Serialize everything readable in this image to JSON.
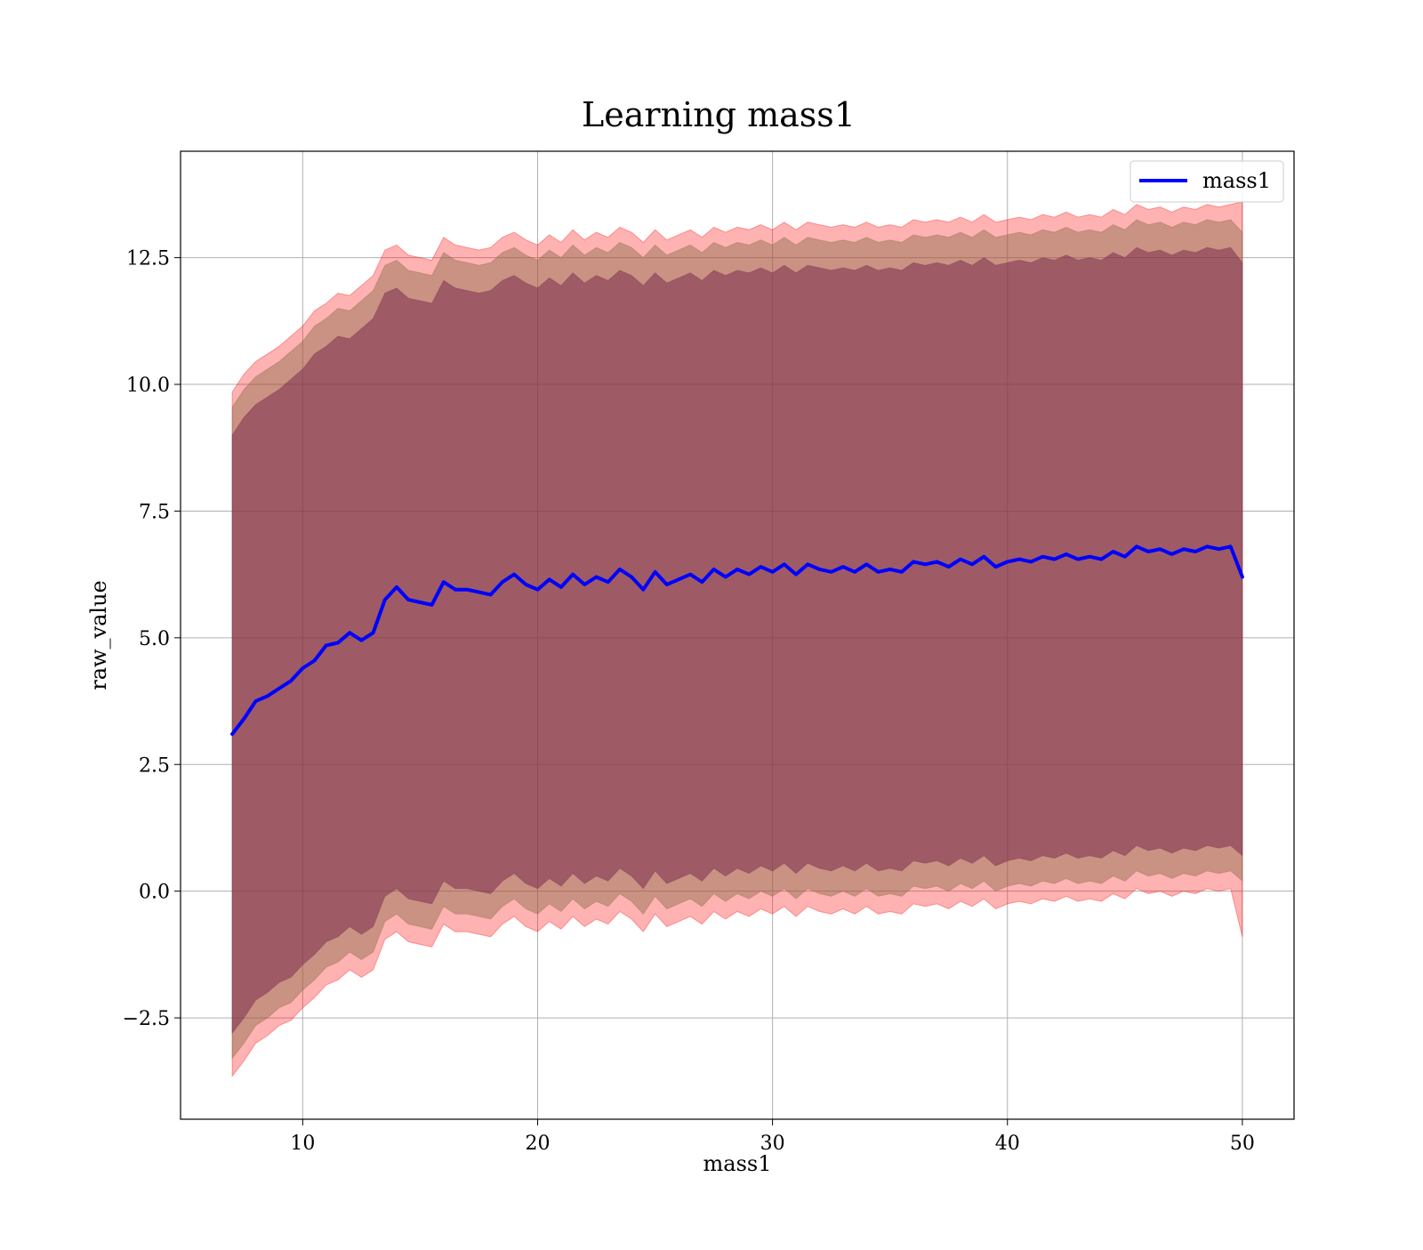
{
  "colors": {
    "mean_line": "#0000ff",
    "band_outer": "#ff0000",
    "band_middle": "#8a6a4a",
    "band_inner": "#7a2e4e",
    "grid": "#b0b0b0"
  },
  "chart_data": {
    "type": "line",
    "title": "Learning mass1",
    "xlabel": "mass1",
    "ylabel": "raw_value",
    "xlim": [
      4.8,
      52.2
    ],
    "ylim": [
      -4.5,
      14.6
    ],
    "xticks": [
      10,
      20,
      30,
      40,
      50
    ],
    "xtick_labels": [
      "10",
      "20",
      "30",
      "40",
      "50"
    ],
    "yticks": [
      -2.5,
      0.0,
      2.5,
      5.0,
      7.5,
      10.0,
      12.5
    ],
    "ytick_labels": [
      "−2.5",
      "0.0",
      "2.5",
      "5.0",
      "7.5",
      "10.0",
      "12.5"
    ],
    "grid": true,
    "legend_position": "top-right",
    "series": [
      {
        "name": "mass1",
        "x": [
          7.0,
          7.5,
          8.0,
          8.5,
          9.0,
          9.5,
          10.0,
          10.5,
          11.0,
          11.5,
          12.0,
          12.5,
          13.0,
          13.5,
          14.0,
          14.5,
          15.0,
          15.5,
          16.0,
          16.5,
          17.0,
          17.5,
          18.0,
          18.5,
          19.0,
          19.5,
          20.0,
          20.5,
          21.0,
          21.5,
          22.0,
          22.5,
          23.0,
          23.5,
          24.0,
          24.5,
          25.0,
          25.5,
          26.0,
          26.5,
          27.0,
          27.5,
          28.0,
          28.5,
          29.0,
          29.5,
          30.0,
          30.5,
          31.0,
          31.5,
          32.0,
          32.5,
          33.0,
          33.5,
          34.0,
          34.5,
          35.0,
          35.5,
          36.0,
          36.5,
          37.0,
          37.5,
          38.0,
          38.5,
          39.0,
          39.5,
          40.0,
          40.5,
          41.0,
          41.5,
          42.0,
          42.5,
          43.0,
          43.5,
          44.0,
          44.5,
          45.0,
          45.5,
          46.0,
          46.5,
          47.0,
          47.5,
          48.0,
          48.5,
          49.0,
          49.5,
          50.0
        ],
        "values": [
          3.1,
          3.4,
          3.75,
          3.85,
          4.0,
          4.15,
          4.4,
          4.55,
          4.85,
          4.9,
          5.1,
          4.95,
          5.1,
          5.75,
          6.0,
          5.75,
          5.7,
          5.65,
          6.1,
          5.95,
          5.95,
          5.9,
          5.85,
          6.1,
          6.25,
          6.05,
          5.95,
          6.15,
          6.0,
          6.25,
          6.05,
          6.2,
          6.1,
          6.35,
          6.2,
          5.95,
          6.3,
          6.05,
          6.15,
          6.25,
          6.1,
          6.35,
          6.2,
          6.35,
          6.25,
          6.4,
          6.3,
          6.45,
          6.25,
          6.45,
          6.35,
          6.3,
          6.4,
          6.3,
          6.45,
          6.3,
          6.35,
          6.3,
          6.5,
          6.45,
          6.5,
          6.4,
          6.55,
          6.45,
          6.6,
          6.4,
          6.5,
          6.55,
          6.5,
          6.6,
          6.55,
          6.65,
          6.55,
          6.6,
          6.55,
          6.7,
          6.6,
          6.8,
          6.7,
          6.75,
          6.65,
          6.75,
          6.7,
          6.8,
          6.75,
          6.8,
          6.2
        ]
      }
    ],
    "bands": [
      {
        "color": "outer",
        "upper": [
          9.85,
          10.2,
          10.45,
          10.6,
          10.75,
          10.95,
          11.15,
          11.45,
          11.6,
          11.8,
          11.75,
          11.95,
          12.15,
          12.65,
          12.75,
          12.55,
          12.5,
          12.45,
          12.9,
          12.75,
          12.7,
          12.65,
          12.7,
          12.9,
          13.0,
          12.85,
          12.75,
          12.95,
          12.8,
          13.05,
          12.85,
          13.0,
          12.9,
          13.1,
          13.0,
          12.8,
          13.05,
          12.85,
          12.95,
          13.05,
          12.9,
          13.1,
          13.0,
          13.1,
          13.05,
          13.15,
          13.05,
          13.2,
          13.05,
          13.2,
          13.15,
          13.1,
          13.15,
          13.1,
          13.2,
          13.1,
          13.15,
          13.1,
          13.25,
          13.2,
          13.25,
          13.2,
          13.3,
          13.2,
          13.35,
          13.2,
          13.25,
          13.3,
          13.25,
          13.35,
          13.3,
          13.4,
          13.3,
          13.35,
          13.3,
          13.45,
          13.35,
          13.55,
          13.45,
          13.5,
          13.4,
          13.5,
          13.45,
          13.55,
          13.5,
          13.55,
          13.6
        ],
        "lower": [
          -3.65,
          -3.35,
          -3.0,
          -2.85,
          -2.65,
          -2.55,
          -2.3,
          -2.1,
          -1.85,
          -1.75,
          -1.55,
          -1.7,
          -1.55,
          -0.95,
          -0.8,
          -1.0,
          -1.05,
          -1.1,
          -0.65,
          -0.8,
          -0.8,
          -0.85,
          -0.9,
          -0.65,
          -0.5,
          -0.7,
          -0.8,
          -0.6,
          -0.75,
          -0.5,
          -0.7,
          -0.55,
          -0.65,
          -0.4,
          -0.55,
          -0.8,
          -0.45,
          -0.7,
          -0.6,
          -0.5,
          -0.65,
          -0.4,
          -0.55,
          -0.4,
          -0.5,
          -0.35,
          -0.45,
          -0.3,
          -0.5,
          -0.3,
          -0.4,
          -0.45,
          -0.35,
          -0.45,
          -0.3,
          -0.45,
          -0.4,
          -0.45,
          -0.25,
          -0.3,
          -0.25,
          -0.35,
          -0.2,
          -0.3,
          -0.15,
          -0.35,
          -0.25,
          -0.2,
          -0.25,
          -0.15,
          -0.2,
          -0.1,
          -0.2,
          -0.15,
          -0.2,
          -0.05,
          -0.15,
          0.05,
          -0.05,
          0.0,
          -0.1,
          0.0,
          -0.05,
          0.05,
          0.0,
          0.05,
          -0.9
        ]
      },
      {
        "color": "middle",
        "upper": [
          9.55,
          9.9,
          10.15,
          10.3,
          10.45,
          10.65,
          10.85,
          11.15,
          11.3,
          11.5,
          11.45,
          11.65,
          11.85,
          12.35,
          12.45,
          12.25,
          12.2,
          12.15,
          12.6,
          12.45,
          12.4,
          12.35,
          12.4,
          12.6,
          12.7,
          12.55,
          12.45,
          12.65,
          12.5,
          12.75,
          12.55,
          12.7,
          12.6,
          12.8,
          12.7,
          12.5,
          12.75,
          12.55,
          12.65,
          12.75,
          12.6,
          12.8,
          12.7,
          12.8,
          12.75,
          12.85,
          12.75,
          12.9,
          12.75,
          12.9,
          12.85,
          12.8,
          12.85,
          12.8,
          12.9,
          12.8,
          12.85,
          12.8,
          12.95,
          12.9,
          12.95,
          12.9,
          13.0,
          12.9,
          13.05,
          12.9,
          12.95,
          13.0,
          12.95,
          13.05,
          13.0,
          13.1,
          13.0,
          13.05,
          13.0,
          13.15,
          13.05,
          13.25,
          13.15,
          13.2,
          13.1,
          13.2,
          13.15,
          13.25,
          13.2,
          13.25,
          13.0
        ],
        "lower": [
          -3.3,
          -3.0,
          -2.65,
          -2.5,
          -2.3,
          -2.2,
          -1.95,
          -1.75,
          -1.5,
          -1.4,
          -1.2,
          -1.35,
          -1.2,
          -0.6,
          -0.45,
          -0.65,
          -0.7,
          -0.75,
          -0.3,
          -0.45,
          -0.45,
          -0.5,
          -0.55,
          -0.3,
          -0.15,
          -0.35,
          -0.45,
          -0.25,
          -0.4,
          -0.15,
          -0.35,
          -0.2,
          -0.3,
          -0.05,
          -0.2,
          -0.45,
          -0.1,
          -0.35,
          -0.25,
          -0.15,
          -0.3,
          -0.05,
          -0.2,
          -0.05,
          -0.15,
          0.0,
          -0.1,
          0.05,
          -0.15,
          0.05,
          -0.05,
          -0.1,
          0.0,
          -0.1,
          0.05,
          -0.1,
          -0.05,
          -0.1,
          0.1,
          0.05,
          0.1,
          0.0,
          0.15,
          0.05,
          0.2,
          0.0,
          0.1,
          0.15,
          0.1,
          0.2,
          0.15,
          0.25,
          0.15,
          0.2,
          0.15,
          0.3,
          0.2,
          0.4,
          0.3,
          0.35,
          0.25,
          0.35,
          0.3,
          0.4,
          0.35,
          0.4,
          0.2
        ]
      },
      {
        "color": "inner",
        "upper": [
          9.0,
          9.35,
          9.6,
          9.75,
          9.9,
          10.1,
          10.3,
          10.6,
          10.75,
          10.95,
          10.9,
          11.1,
          11.3,
          11.8,
          11.9,
          11.7,
          11.65,
          11.6,
          12.05,
          11.9,
          11.85,
          11.8,
          11.85,
          12.05,
          12.15,
          12.0,
          11.9,
          12.1,
          11.95,
          12.2,
          12.0,
          12.15,
          12.05,
          12.25,
          12.15,
          11.95,
          12.2,
          12.0,
          12.1,
          12.2,
          12.05,
          12.25,
          12.15,
          12.25,
          12.2,
          12.3,
          12.2,
          12.35,
          12.2,
          12.35,
          12.3,
          12.25,
          12.3,
          12.25,
          12.35,
          12.25,
          12.3,
          12.25,
          12.4,
          12.35,
          12.4,
          12.35,
          12.45,
          12.35,
          12.5,
          12.35,
          12.4,
          12.45,
          12.4,
          12.5,
          12.45,
          12.55,
          12.45,
          12.5,
          12.45,
          12.6,
          12.5,
          12.7,
          12.6,
          12.65,
          12.55,
          12.65,
          12.6,
          12.7,
          12.65,
          12.7,
          12.4
        ],
        "lower": [
          -2.8,
          -2.5,
          -2.15,
          -2.0,
          -1.8,
          -1.7,
          -1.45,
          -1.25,
          -1.0,
          -0.9,
          -0.7,
          -0.85,
          -0.7,
          -0.1,
          0.05,
          -0.15,
          -0.2,
          -0.25,
          0.2,
          0.05,
          0.05,
          0.0,
          -0.05,
          0.2,
          0.35,
          0.15,
          0.05,
          0.25,
          0.1,
          0.35,
          0.15,
          0.3,
          0.2,
          0.45,
          0.3,
          0.05,
          0.4,
          0.15,
          0.25,
          0.35,
          0.2,
          0.45,
          0.3,
          0.45,
          0.35,
          0.5,
          0.4,
          0.55,
          0.35,
          0.55,
          0.45,
          0.4,
          0.5,
          0.4,
          0.55,
          0.4,
          0.45,
          0.4,
          0.6,
          0.55,
          0.6,
          0.5,
          0.65,
          0.55,
          0.7,
          0.5,
          0.6,
          0.65,
          0.6,
          0.7,
          0.65,
          0.75,
          0.65,
          0.7,
          0.65,
          0.8,
          0.7,
          0.9,
          0.8,
          0.85,
          0.75,
          0.85,
          0.8,
          0.9,
          0.85,
          0.9,
          0.7
        ]
      }
    ]
  }
}
